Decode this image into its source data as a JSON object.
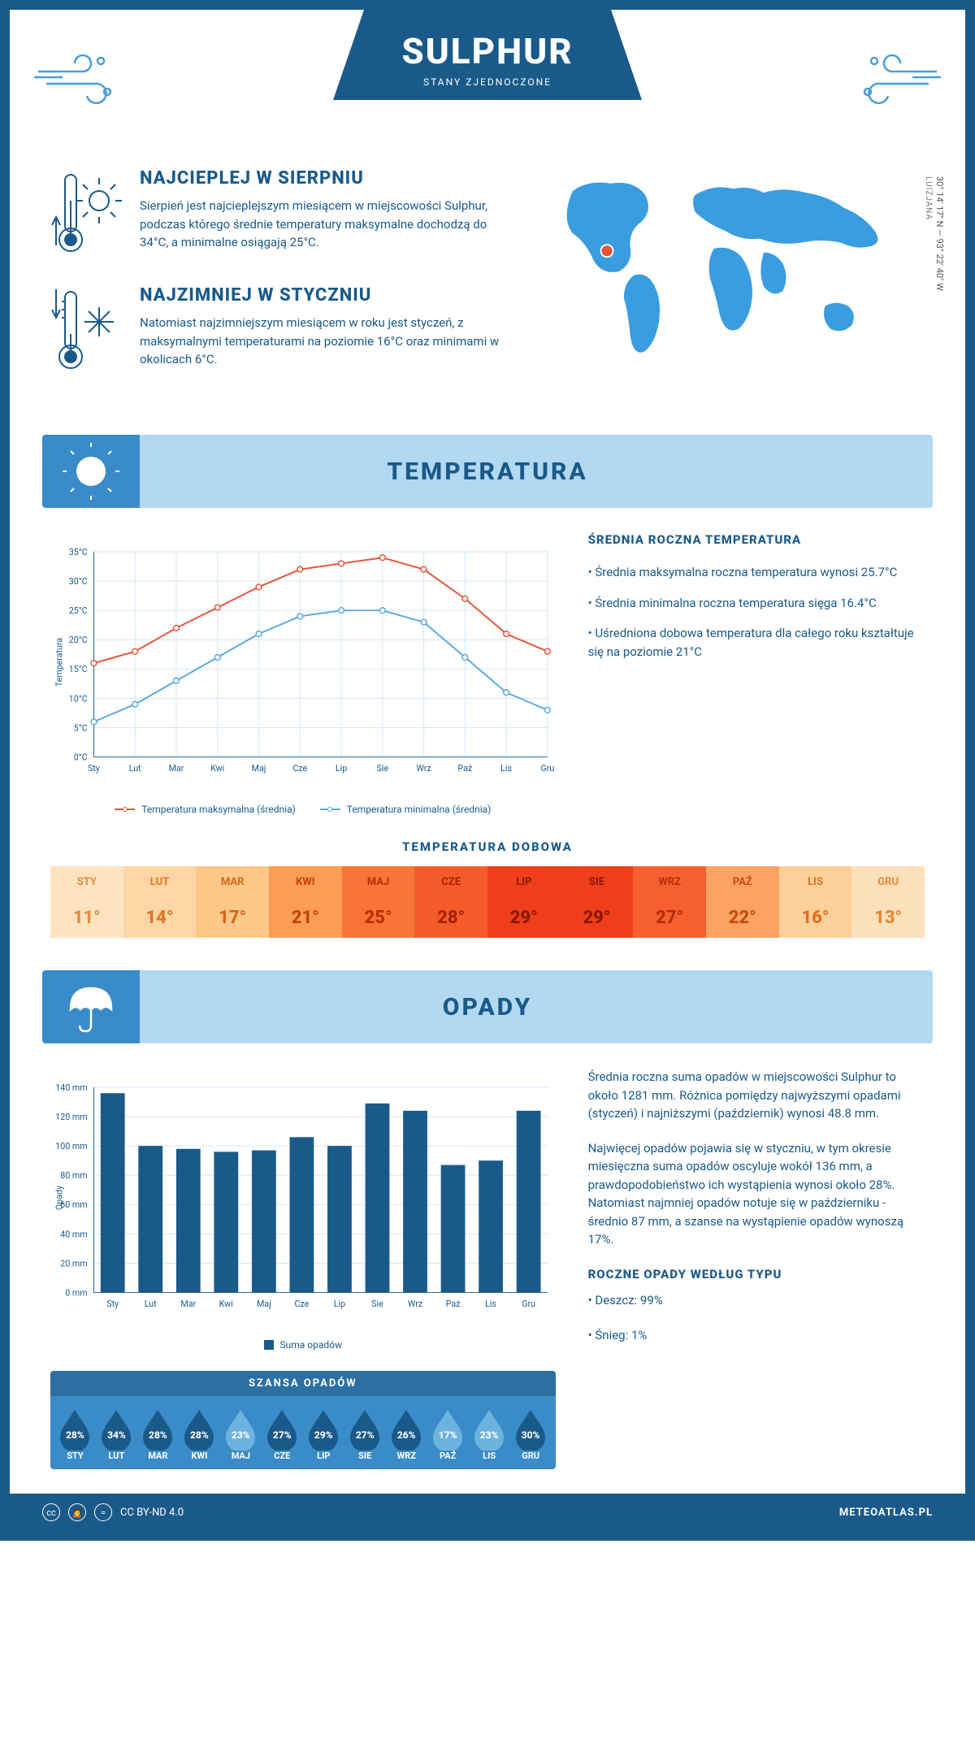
{
  "header": {
    "title": "SULPHUR",
    "subtitle": "STANY ZJEDNOCZONE"
  },
  "coords": "30° 14' 17'' N — 93° 22' 40'' W",
  "region": "LUIZJANA",
  "intro": {
    "hot": {
      "title": "NAJCIEPLEJ W SIERPNIU",
      "text": "Sierpień jest najcieplejszym miesiącem w miejscowości Sulphur, podczas którego średnie temperatury maksymalne dochodzą do 34°C, a minimalne osiągają 25°C."
    },
    "cold": {
      "title": "NAJZIMNIEJ W STYCZNIU",
      "text": "Natomiast najzimniejszym miesiącem w roku jest styczeń, z maksymalnymi temperaturami na poziomie 16°C oraz minimami w okolicach 6°C."
    }
  },
  "sections": {
    "temperature": "TEMPERATURA",
    "precip": "OPADY"
  },
  "months": [
    "Sty",
    "Lut",
    "Mar",
    "Kwi",
    "Maj",
    "Cze",
    "Lip",
    "Sie",
    "Wrz",
    "Paź",
    "Lis",
    "Gru"
  ],
  "months_upper": [
    "STY",
    "LUT",
    "MAR",
    "KWI",
    "MAJ",
    "CZE",
    "LIP",
    "SIE",
    "WRZ",
    "PAŹ",
    "LIS",
    "GRU"
  ],
  "temp_chart": {
    "ylabel": "Temperatura",
    "ylim": [
      0,
      35
    ],
    "ytick_step": 5,
    "max_series": {
      "label": "Temperatura maksymalna (średnia)",
      "color": "#e8533a",
      "values": [
        16,
        18,
        22,
        25.5,
        29,
        32,
        33,
        34,
        32,
        27,
        21,
        18
      ]
    },
    "min_series": {
      "label": "Temperatura minimalna (średnia)",
      "color": "#5aa9e0",
      "values": [
        6,
        9,
        13,
        17,
        21,
        24,
        25,
        25,
        23,
        17,
        11,
        8
      ]
    },
    "grid_color": "#d0e5f5",
    "axis_color": "#1a5a8a"
  },
  "temp_info": {
    "title": "ŚREDNIA ROCZNA TEMPERATURA",
    "b1": "• Średnia maksymalna roczna temperatura wynosi 25.7°C",
    "b2": "• Średnia minimalna roczna temperatura sięga 16.4°C",
    "b3": "• Uśredniona dobowa temperatura dla całego roku kształtuje się na poziomie 21°C"
  },
  "daily_temp": {
    "title": "TEMPERATURA DOBOWA",
    "values": [
      11,
      14,
      17,
      21,
      25,
      28,
      29,
      29,
      27,
      22,
      16,
      13
    ],
    "bg_colors": [
      "#fde4c1",
      "#fdd6a5",
      "#fdc888",
      "#fb9d53",
      "#f77637",
      "#f45b28",
      "#ee3e1c",
      "#ee3e1c",
      "#f66030",
      "#fca263",
      "#fdd09a",
      "#fde1bc"
    ],
    "text_colors": [
      "#e8893a",
      "#e07526",
      "#d8651a",
      "#c44308",
      "#b53000",
      "#a32200",
      "#8c1500",
      "#8c1500",
      "#b52e00",
      "#c64c0c",
      "#de7020",
      "#e68635"
    ]
  },
  "precip_chart": {
    "ylabel": "Opady",
    "ylim": [
      0,
      140
    ],
    "ytick_step": 20,
    "bar_color": "#1a5a8a",
    "legend": "Suma opadów",
    "values": [
      136,
      100,
      98,
      96,
      97,
      106,
      100,
      129,
      124,
      87,
      90,
      124
    ]
  },
  "precip_info": {
    "p1": "Średnia roczna suma opadów w miejscowości Sulphur to około 1281 mm. Różnica pomiędzy najwyższymi opadami (styczeń) i najniższymi (październik) wynosi 48.8 mm.",
    "p2": "Najwięcej opadów pojawia się w styczniu, w tym okresie miesięczna suma opadów oscyluje wokół 136 mm, a prawdopodobieństwo ich wystąpienia wynosi około 28%. Natomiast najmniej opadów notuje się w październiku - średnio 87 mm, a szanse na wystąpienie opadów wynoszą 17%.",
    "type_title": "ROCZNE OPADY WEDŁUG TYPU",
    "rain": "• Deszcz: 99%",
    "snow": "• Śnieg: 1%"
  },
  "chance": {
    "title": "SZANSA OPADÓW",
    "values": [
      28,
      34,
      28,
      28,
      23,
      27,
      29,
      27,
      26,
      17,
      23,
      30
    ],
    "drop_dark": "#1a5a8a",
    "drop_light": "#6db3e0",
    "threshold": 26
  },
  "footer": {
    "license": "CC BY-ND 4.0",
    "site": "METEOATLAS.PL"
  }
}
